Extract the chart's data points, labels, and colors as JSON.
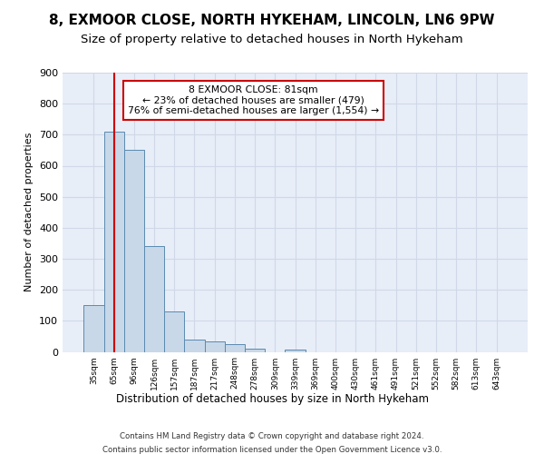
{
  "title1": "8, EXMOOR CLOSE, NORTH HYKEHAM, LINCOLN, LN6 9PW",
  "title2": "Size of property relative to detached houses in North Hykeham",
  "xlabel": "Distribution of detached houses by size in North Hykeham",
  "ylabel": "Number of detached properties",
  "footer1": "Contains HM Land Registry data © Crown copyright and database right 2024.",
  "footer2": "Contains public sector information licensed under the Open Government Licence v3.0.",
  "bin_labels": [
    "35sqm",
    "65sqm",
    "96sqm",
    "126sqm",
    "157sqm",
    "187sqm",
    "217sqm",
    "248sqm",
    "278sqm",
    "309sqm",
    "339sqm",
    "369sqm",
    "400sqm",
    "430sqm",
    "461sqm",
    "491sqm",
    "521sqm",
    "552sqm",
    "582sqm",
    "613sqm",
    "643sqm"
  ],
  "bar_values": [
    150,
    710,
    650,
    340,
    130,
    40,
    35,
    25,
    10,
    0,
    8,
    0,
    0,
    0,
    0,
    0,
    0,
    0,
    0,
    0,
    0
  ],
  "bar_color": "#c8d8e8",
  "bar_edge_color": "#5a8ab0",
  "grid_color": "#d0d8e8",
  "annotation_line1": "8 EXMOOR CLOSE: 81sqm",
  "annotation_line2": "← 23% of detached houses are smaller (479)",
  "annotation_line3": "76% of semi-detached houses are larger (1,554) →",
  "vline_x": 1,
  "vline_color": "#cc0000",
  "annotation_box_color": "#ffffff",
  "annotation_box_edge": "#cc0000",
  "ylim": [
    0,
    900
  ],
  "yticks": [
    0,
    100,
    200,
    300,
    400,
    500,
    600,
    700,
    800,
    900
  ],
  "plot_bg_color": "#e8eef8",
  "title1_fontsize": 11,
  "title2_fontsize": 9.5
}
